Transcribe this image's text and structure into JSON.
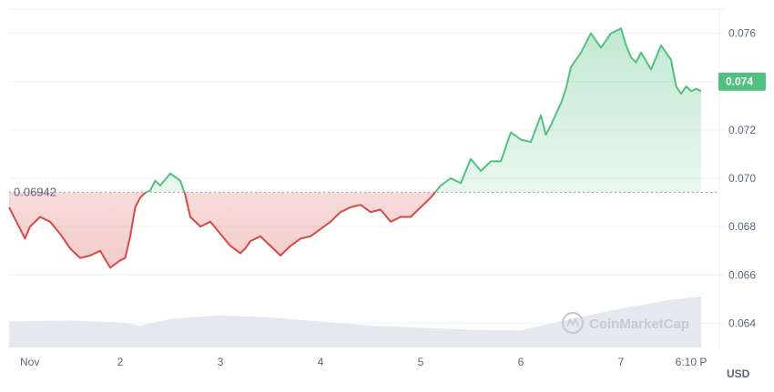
{
  "chart_data": {
    "type": "line",
    "reference_value": 0.06942,
    "reference_label": "0.06942",
    "last_value": 0.074,
    "last_label": "0.074",
    "currency": "USD",
    "watermark": "CoinMarketCap",
    "ylim": [
      0.063,
      0.077
    ],
    "y_ticks": [
      0.064,
      0.066,
      0.068,
      0.07,
      0.072,
      0.074,
      0.076
    ],
    "y_tick_labels": [
      "0.064",
      "0.066",
      "0.068",
      "0.070",
      "0.072",
      "0.074",
      "0.076"
    ],
    "xlim": [
      0,
      6.8
    ],
    "x_ticks": [
      0,
      1,
      2,
      3,
      4,
      5,
      6,
      6.7
    ],
    "x_tick_labels": [
      "Nov",
      "2",
      "3",
      "4",
      "5",
      "6",
      "7",
      "6:10 P"
    ],
    "colors": {
      "up": "#52c07f",
      "down": "#d24b44",
      "reference": "#9aa0aa",
      "volume": "#e6e8ef",
      "grid": "#eff2f5"
    },
    "price": {
      "x": [
        0,
        0.05,
        0.1,
        0.2,
        0.3,
        0.4,
        0.5,
        0.6,
        0.7,
        0.8,
        0.9,
        1.0,
        1.05,
        1.1,
        1.15,
        1.2,
        1.25,
        1.3,
        1.35,
        1.4,
        1.5,
        1.6,
        1.65,
        1.7,
        1.8,
        1.9,
        2.0,
        2.1,
        2.2,
        2.25,
        2.3,
        2.4,
        2.5,
        2.6,
        2.7,
        2.8,
        2.9,
        3.0,
        3.1,
        3.2,
        3.3,
        3.4,
        3.5,
        3.6,
        3.7,
        3.8,
        3.9,
        4.0,
        4.1,
        4.2,
        4.3,
        4.4,
        4.5,
        4.6,
        4.7,
        4.8,
        4.9,
        5.0,
        5.1,
        5.2,
        5.25,
        5.3,
        5.4,
        5.45,
        5.5,
        5.6,
        5.7,
        5.8,
        5.9,
        6.0,
        6.05,
        6.1,
        6.15,
        6.2,
        6.3,
        6.4,
        6.5,
        6.55,
        6.6,
        6.65,
        6.7,
        6.75,
        6.8
      ],
      "y": [
        0.0688,
        0.0675,
        0.068,
        0.0684,
        0.0682,
        0.0677,
        0.0671,
        0.0667,
        0.0668,
        0.067,
        0.0663,
        0.0666,
        0.0667,
        0.0676,
        0.0688,
        0.0692,
        0.0694,
        0.0695,
        0.0699,
        0.0697,
        0.0702,
        0.0699,
        0.0693,
        0.0684,
        0.068,
        0.0682,
        0.0677,
        0.0672,
        0.0669,
        0.0671,
        0.0674,
        0.0676,
        0.0672,
        0.0668,
        0.0672,
        0.0675,
        0.0676,
        0.0679,
        0.0682,
        0.0686,
        0.0688,
        0.0689,
        0.0686,
        0.0687,
        0.0682,
        0.0684,
        0.0684,
        0.0688,
        0.0692,
        0.0697,
        0.07,
        0.0698,
        0.0708,
        0.0703,
        0.0707,
        0.0707,
        0.0719,
        0.0716,
        0.0715,
        0.0726,
        0.0718,
        0.0722,
        0.0731,
        0.0737,
        0.0746,
        0.0752,
        0.076,
        0.0754,
        0.076,
        0.0762,
        0.0755,
        0.075,
        0.0748,
        0.0752,
        0.0745,
        0.0755,
        0.0749,
        0.0738,
        0.0735,
        0.0738,
        0.0736,
        0.0737,
        0.0736
      ]
    },
    "volume": {
      "x": [
        0,
        0.5,
        1.0,
        1.2,
        1.5,
        2.0,
        2.5,
        3.0,
        3.5,
        4.0,
        4.5,
        5.0,
        5.5,
        6.0,
        6.5,
        6.8
      ],
      "v": [
        0.5,
        0.52,
        0.48,
        0.42,
        0.55,
        0.62,
        0.58,
        0.5,
        0.42,
        0.38,
        0.34,
        0.33,
        0.55,
        0.75,
        0.92,
        0.98
      ]
    }
  }
}
